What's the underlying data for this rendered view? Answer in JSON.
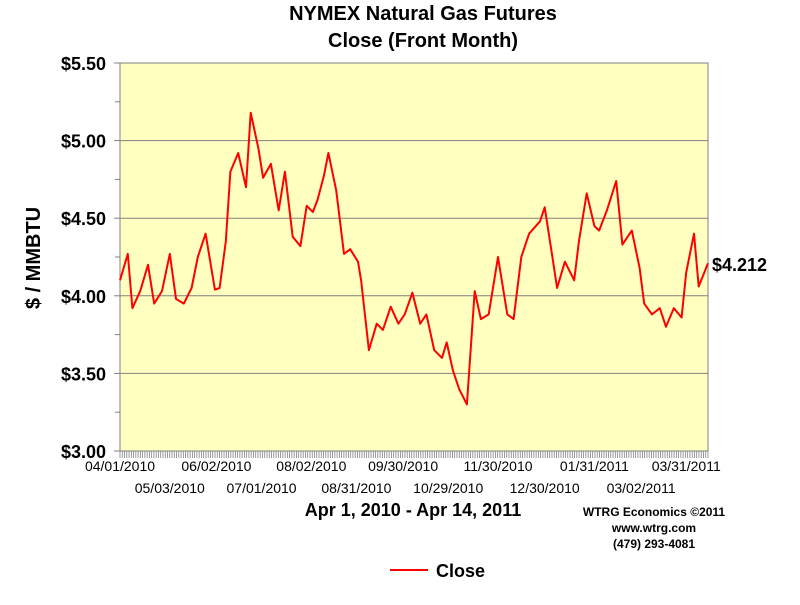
{
  "chart_data": {
    "type": "line",
    "title": "NYMEX Natural Gas Futures",
    "subtitle": "Close (Front Month)",
    "xlabel": "Apr 1, 2010 - Apr 14, 2011",
    "ylabel": "$ / MMBTU",
    "ylim": [
      3.0,
      5.5
    ],
    "ytick_labels": [
      "$3.00",
      "$3.50",
      "$4.00",
      "$4.50",
      "$5.00",
      "$5.50"
    ],
    "x_tick_labels_top": [
      "04/01/2010",
      "06/02/2010",
      "08/02/2010",
      "09/30/2010",
      "11/30/2010",
      "01/31/2011",
      "03/31/2011"
    ],
    "x_tick_labels_bottom": [
      "05/03/2010",
      "07/01/2010",
      "08/31/2010",
      "10/29/2010",
      "12/30/2010",
      "03/02/2011"
    ],
    "last_value_label": "$4.212",
    "grid": true,
    "legend_position": "bottom-center",
    "colors": {
      "line": "#ff0000",
      "plot_background": "#ffffc0",
      "grid": "#808080"
    },
    "series": [
      {
        "name": "Close",
        "x": [
          "2010-04-01",
          "2010-04-06",
          "2010-04-09",
          "2010-04-14",
          "2010-04-19",
          "2010-04-23",
          "2010-04-28",
          "2010-05-03",
          "2010-05-07",
          "2010-05-12",
          "2010-05-17",
          "2010-05-21",
          "2010-05-26",
          "2010-06-01",
          "2010-06-04",
          "2010-06-08",
          "2010-06-11",
          "2010-06-16",
          "2010-06-21",
          "2010-06-24",
          "2010-06-29",
          "2010-07-02",
          "2010-07-07",
          "2010-07-12",
          "2010-07-16",
          "2010-07-21",
          "2010-07-26",
          "2010-07-30",
          "2010-08-03",
          "2010-08-06",
          "2010-08-10",
          "2010-08-13",
          "2010-08-18",
          "2010-08-23",
          "2010-08-27",
          "2010-09-01",
          "2010-09-03",
          "2010-09-08",
          "2010-09-13",
          "2010-09-17",
          "2010-09-22",
          "2010-09-27",
          "2010-10-01",
          "2010-10-06",
          "2010-10-11",
          "2010-10-15",
          "2010-10-20",
          "2010-10-25",
          "2010-10-28",
          "2010-11-01",
          "2010-11-05",
          "2010-11-10",
          "2010-11-15",
          "2010-11-19",
          "2010-11-24",
          "2010-11-30",
          "2010-12-06",
          "2010-12-10",
          "2010-12-15",
          "2010-12-20",
          "2010-12-27",
          "2010-12-30",
          "2011-01-04",
          "2011-01-07",
          "2011-01-12",
          "2011-01-18",
          "2011-01-21",
          "2011-01-26",
          "2011-01-31",
          "2011-02-03",
          "2011-02-08",
          "2011-02-14",
          "2011-02-18",
          "2011-02-24",
          "2011-03-01",
          "2011-03-04",
          "2011-03-09",
          "2011-03-14",
          "2011-03-18",
          "2011-03-23",
          "2011-03-28",
          "2011-03-31",
          "2011-04-05",
          "2011-04-08",
          "2011-04-14"
        ],
        "values": [
          4.1,
          4.27,
          3.92,
          4.03,
          4.2,
          3.95,
          4.03,
          4.27,
          3.98,
          3.95,
          4.05,
          4.25,
          4.4,
          4.04,
          4.05,
          4.35,
          4.8,
          4.92,
          4.7,
          5.18,
          4.95,
          4.76,
          4.85,
          4.55,
          4.8,
          4.38,
          4.32,
          4.58,
          4.54,
          4.62,
          4.77,
          4.92,
          4.68,
          4.27,
          4.3,
          4.22,
          4.1,
          3.65,
          3.82,
          3.78,
          3.93,
          3.82,
          3.88,
          4.02,
          3.82,
          3.88,
          3.65,
          3.6,
          3.7,
          3.52,
          3.4,
          3.3,
          4.03,
          3.85,
          3.88,
          4.25,
          3.88,
          3.85,
          4.25,
          4.4,
          4.48,
          4.57,
          4.25,
          4.05,
          4.22,
          4.1,
          4.35,
          4.66,
          4.45,
          4.42,
          4.55,
          4.74,
          4.33,
          4.42,
          4.18,
          3.95,
          3.88,
          3.92,
          3.8,
          3.92,
          3.86,
          4.15,
          4.4,
          4.06,
          4.21
        ]
      }
    ],
    "credits": [
      "WTRG Economics  ©2011",
      "www.wtrg.com",
      "(479) 293-4081"
    ]
  }
}
